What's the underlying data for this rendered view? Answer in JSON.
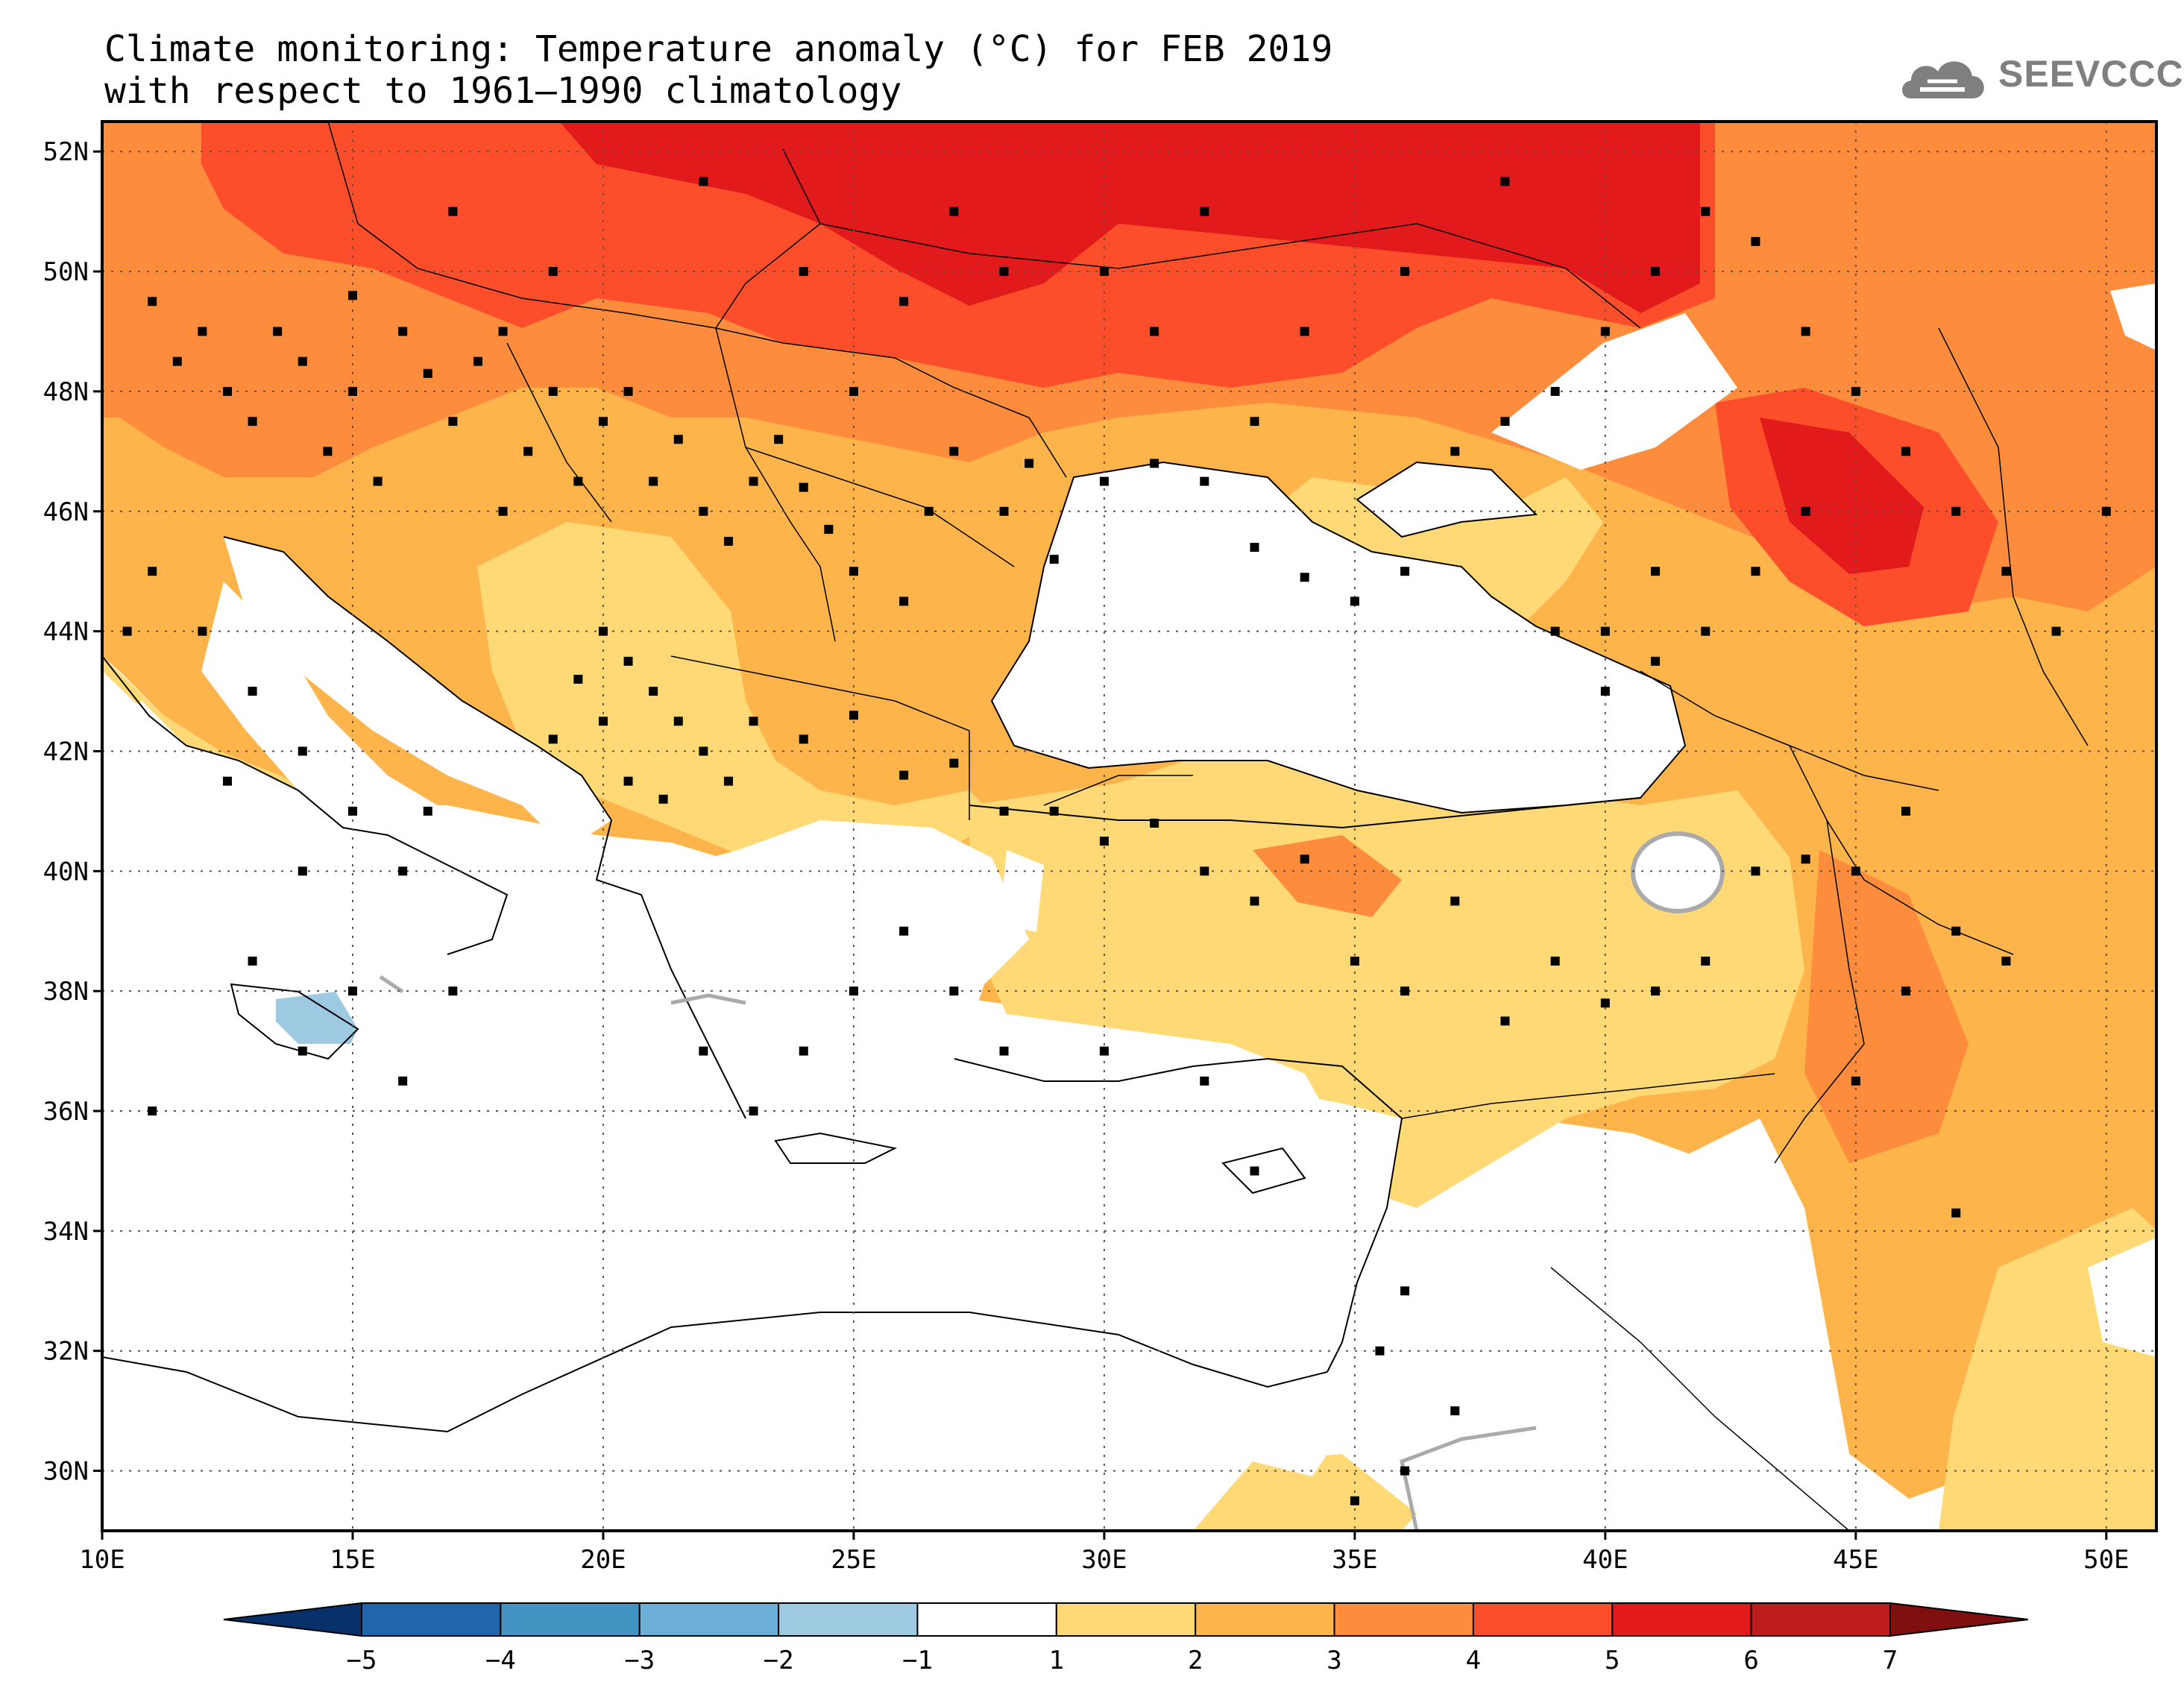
{
  "title_line1": "Climate monitoring: Temperature anomaly (°C) for FEB 2019",
  "title_line2": "with respect to 1961–1990 climatology",
  "logo_text": "SEEVCCC",
  "map": {
    "lon_range": [
      10,
      51
    ],
    "lat_range": [
      29,
      52.5
    ],
    "lon_ticks": [
      "10E",
      "15E",
      "20E",
      "25E",
      "30E",
      "35E",
      "40E",
      "45E",
      "50E"
    ],
    "lat_ticks": [
      "52N",
      "50N",
      "48N",
      "46N",
      "44N",
      "42N",
      "40N",
      "38N",
      "36N",
      "34N",
      "32N",
      "30N"
    ],
    "grid": "dotted",
    "stations": "black squares"
  },
  "colorbar": {
    "labels": [
      "−5",
      "−4",
      "−3",
      "−2",
      "−1",
      "1",
      "2",
      "3",
      "4",
      "5",
      "6",
      "7"
    ],
    "colors": [
      "#08306b",
      "#2166ac",
      "#4393c3",
      "#6baed6",
      "#9ecae1",
      "#ffffff",
      "#fed976",
      "#fdb44b",
      "#fd8d3c",
      "#fc4e2a",
      "#e31a1c",
      "#bd1c1c",
      "#800f0f"
    ]
  },
  "anomaly_colors": {
    "1_2": "#fed976",
    "2_3": "#fdb44b",
    "3_4": "#fd8d3c",
    "4_5": "#fc4e2a",
    "5_6": "#e31a1c",
    "neg_2_1": "#9ecae1"
  }
}
